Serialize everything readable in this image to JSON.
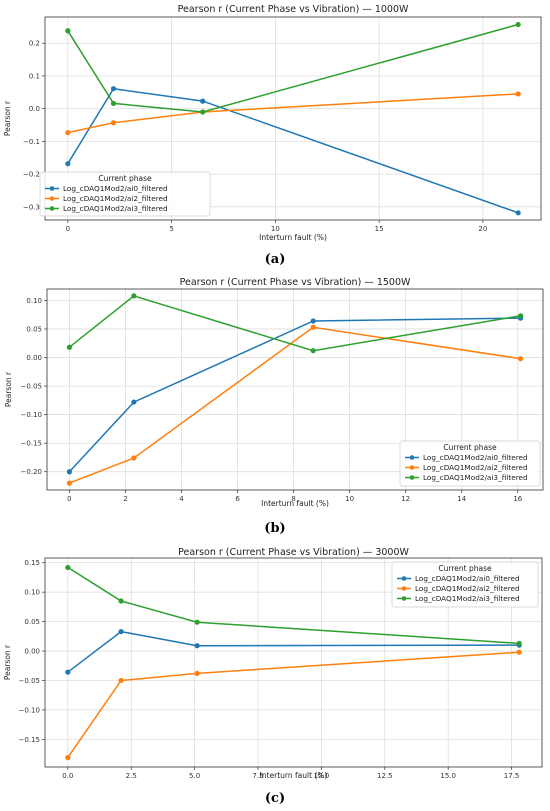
{
  "chart_data": [
    {
      "type": "line",
      "title": "Pearson r (Current Phase vs Vibration) — 1000W",
      "xlabel": "Interturn fault (%)",
      "ylabel": "Pearson r",
      "caption": "(a)",
      "xlim": [
        -1.1,
        22.8
      ],
      "ylim": [
        -0.34,
        0.28
      ],
      "xticks": [
        0,
        5,
        10,
        15,
        20
      ],
      "yticks": [
        -0.3,
        -0.2,
        -0.1,
        0.0,
        0.1,
        0.2
      ],
      "ytick_labels": [
        "−0.3",
        "−0.2",
        "−0.1",
        "0.0",
        "0.1",
        "0.2"
      ],
      "grid": true,
      "legend": {
        "title": "Current phase",
        "position": "lower-left"
      },
      "series": [
        {
          "name": "Log_cDAQ1Mod2/ai0_filtered",
          "color": "#1f77b4",
          "x": [
            0,
            2.2,
            6.5,
            21.7
          ],
          "y": [
            -0.168,
            0.061,
            0.023,
            -0.318
          ]
        },
        {
          "name": "Log_cDAQ1Mod2/ai2_filtered",
          "color": "#ff7f0e",
          "x": [
            0,
            2.2,
            6.5,
            21.7
          ],
          "y": [
            -0.073,
            -0.043,
            -0.01,
            0.045
          ]
        },
        {
          "name": "Log_cDAQ1Mod2/ai3_filtered",
          "color": "#2ca02c",
          "x": [
            0,
            2.2,
            6.5,
            21.7
          ],
          "y": [
            0.238,
            0.016,
            -0.01,
            0.257
          ]
        }
      ]
    },
    {
      "type": "line",
      "title": "Pearson r (Current Phase vs Vibration) — 1500W",
      "xlabel": "Interturn fault (%)",
      "ylabel": "Pearson r",
      "caption": "(b)",
      "xlim": [
        -0.8,
        16.9
      ],
      "ylim": [
        -0.232,
        0.12
      ],
      "xticks": [
        0,
        2,
        4,
        6,
        8,
        10,
        12,
        14,
        16
      ],
      "yticks": [
        -0.2,
        -0.15,
        -0.1,
        -0.05,
        0.0,
        0.05,
        0.1
      ],
      "ytick_labels": [
        "−0.20",
        "−0.15",
        "−0.10",
        "−0.05",
        "0.00",
        "0.05",
        "0.10"
      ],
      "grid": true,
      "legend": {
        "title": "Current phase",
        "position": "lower-right"
      },
      "series": [
        {
          "name": "Log_cDAQ1Mod2/ai0_filtered",
          "color": "#1f77b4",
          "x": [
            0,
            2.3,
            8.7,
            16.1
          ],
          "y": [
            -0.2,
            -0.078,
            0.064,
            0.069
          ]
        },
        {
          "name": "Log_cDAQ1Mod2/ai2_filtered",
          "color": "#ff7f0e",
          "x": [
            0,
            2.3,
            8.7,
            16.1
          ],
          "y": [
            -0.22,
            -0.176,
            0.053,
            -0.002
          ]
        },
        {
          "name": "Log_cDAQ1Mod2/ai3_filtered",
          "color": "#2ca02c",
          "x": [
            0,
            2.3,
            8.7,
            16.1
          ],
          "y": [
            0.018,
            0.108,
            0.012,
            0.073
          ]
        }
      ]
    },
    {
      "type": "line",
      "title": "Pearson r (Current Phase vs Vibration) — 3000W",
      "xlabel": "Interturn fault (%)",
      "ylabel": "Pearson r",
      "caption": "(c)",
      "xlim": [
        -0.9,
        18.7
      ],
      "ylim": [
        -0.197,
        0.158
      ],
      "xticks": [
        0,
        2.5,
        5,
        7.5,
        10,
        12.5,
        15,
        17.5
      ],
      "xtick_labels": [
        "0.0",
        "2.5",
        "5.0",
        "7.5",
        "10.0",
        "12.5",
        "15.0",
        "17.5"
      ],
      "yticks": [
        -0.15,
        -0.1,
        -0.05,
        0.0,
        0.05,
        0.1,
        0.15
      ],
      "ytick_labels": [
        "−0.15",
        "−0.10",
        "−0.05",
        "0.00",
        "0.05",
        "0.10",
        "0.15"
      ],
      "grid": true,
      "legend": {
        "title": "Current phase",
        "position": "upper-right"
      },
      "series": [
        {
          "name": "Log_cDAQ1Mod2/ai0_filtered",
          "color": "#1f77b4",
          "x": [
            0,
            2.1,
            5.1,
            17.8
          ],
          "y": [
            -0.036,
            0.033,
            0.009,
            0.01
          ]
        },
        {
          "name": "Log_cDAQ1Mod2/ai2_filtered",
          "color": "#ff7f0e",
          "x": [
            0,
            2.1,
            5.1,
            17.8
          ],
          "y": [
            -0.181,
            -0.05,
            -0.038,
            -0.002
          ]
        },
        {
          "name": "Log_cDAQ1Mod2/ai3_filtered",
          "color": "#2ca02c",
          "x": [
            0,
            2.1,
            5.1,
            17.8
          ],
          "y": [
            0.142,
            0.085,
            0.049,
            0.013
          ]
        }
      ]
    }
  ]
}
